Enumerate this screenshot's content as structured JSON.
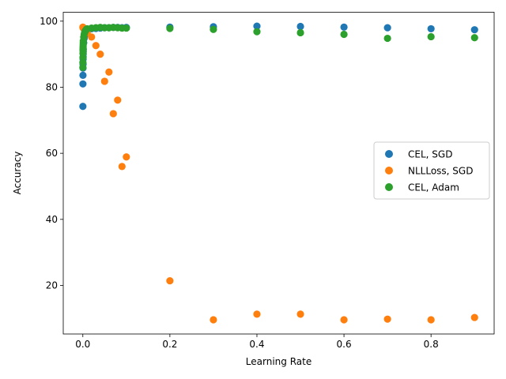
{
  "chart_data": {
    "type": "scatter",
    "title": "",
    "xlabel": "Learning Rate",
    "ylabel": "Accuracy",
    "xlim": [
      -0.045,
      0.945
    ],
    "ylim": [
      5.3,
      102.7
    ],
    "xticks": [
      0.0,
      0.2,
      0.4,
      0.6,
      0.8
    ],
    "xtick_labels": [
      "0.0",
      "0.2",
      "0.4",
      "0.6",
      "0.8"
    ],
    "yticks": [
      20,
      40,
      60,
      80,
      100
    ],
    "ytick_labels": [
      "20",
      "40",
      "60",
      "80",
      "100"
    ],
    "grid": false,
    "legend_position": "center-right",
    "series": [
      {
        "name": "CEL, SGD",
        "color": "#1f77b4",
        "points": [
          [
            0.0001,
            74.2
          ],
          [
            0.0002,
            81.0
          ],
          [
            0.0003,
            83.6
          ],
          [
            0.0004,
            85.8
          ],
          [
            0.0005,
            87.0
          ],
          [
            0.0006,
            88.5
          ],
          [
            0.0007,
            89.2
          ],
          [
            0.0008,
            90.1
          ],
          [
            0.0009,
            90.8
          ],
          [
            0.001,
            91.5
          ],
          [
            0.002,
            93.5
          ],
          [
            0.003,
            94.8
          ],
          [
            0.004,
            95.6
          ],
          [
            0.005,
            96.1
          ],
          [
            0.006,
            96.5
          ],
          [
            0.007,
            96.8
          ],
          [
            0.008,
            97.0
          ],
          [
            0.009,
            97.2
          ],
          [
            0.01,
            97.4
          ],
          [
            0.02,
            97.7
          ],
          [
            0.03,
            97.8
          ],
          [
            0.04,
            97.9
          ],
          [
            0.05,
            98.0
          ],
          [
            0.06,
            98.0
          ],
          [
            0.07,
            98.1
          ],
          [
            0.08,
            98.1
          ],
          [
            0.09,
            98.0
          ],
          [
            0.1,
            98.1
          ],
          [
            0.2,
            98.2
          ],
          [
            0.3,
            98.3
          ],
          [
            0.4,
            98.5
          ],
          [
            0.5,
            98.4
          ],
          [
            0.6,
            98.2
          ],
          [
            0.7,
            98.0
          ],
          [
            0.8,
            97.7
          ],
          [
            0.9,
            97.4
          ]
        ]
      },
      {
        "name": "NLLLoss, SGD",
        "color": "#ff7f0e",
        "points": [
          [
            0.0001,
            98.2
          ],
          [
            0.0005,
            98.0
          ],
          [
            0.001,
            97.9
          ],
          [
            0.005,
            97.5
          ],
          [
            0.01,
            96.5
          ],
          [
            0.02,
            95.2
          ],
          [
            0.03,
            92.6
          ],
          [
            0.04,
            90.0
          ],
          [
            0.05,
            81.8
          ],
          [
            0.06,
            84.6
          ],
          [
            0.07,
            72.0
          ],
          [
            0.08,
            76.1
          ],
          [
            0.09,
            56.0
          ],
          [
            0.1,
            58.9
          ],
          [
            0.2,
            21.4
          ],
          [
            0.3,
            9.6
          ],
          [
            0.4,
            11.3
          ],
          [
            0.5,
            11.3
          ],
          [
            0.6,
            9.6
          ],
          [
            0.7,
            9.8
          ],
          [
            0.8,
            9.6
          ],
          [
            0.9,
            10.3
          ]
        ]
      },
      {
        "name": "CEL, Adam",
        "color": "#2ca02c",
        "points": [
          [
            0.0001,
            86.0
          ],
          [
            0.0002,
            87.5
          ],
          [
            0.0003,
            89.0
          ],
          [
            0.0004,
            90.3
          ],
          [
            0.0005,
            91.2
          ],
          [
            0.0006,
            91.8
          ],
          [
            0.0007,
            92.3
          ],
          [
            0.0008,
            92.8
          ],
          [
            0.0009,
            93.4
          ],
          [
            0.001,
            94.0
          ],
          [
            0.002,
            95.2
          ],
          [
            0.003,
            96.0
          ],
          [
            0.004,
            96.5
          ],
          [
            0.005,
            96.9
          ],
          [
            0.006,
            97.1
          ],
          [
            0.007,
            97.3
          ],
          [
            0.008,
            97.5
          ],
          [
            0.009,
            97.6
          ],
          [
            0.01,
            97.7
          ],
          [
            0.02,
            97.9
          ],
          [
            0.03,
            98.0
          ],
          [
            0.04,
            98.1
          ],
          [
            0.05,
            98.0
          ],
          [
            0.06,
            98.0
          ],
          [
            0.07,
            98.1
          ],
          [
            0.08,
            98.0
          ],
          [
            0.09,
            97.9
          ],
          [
            0.1,
            97.9
          ],
          [
            0.2,
            97.8
          ],
          [
            0.3,
            97.5
          ],
          [
            0.4,
            96.8
          ],
          [
            0.5,
            96.5
          ],
          [
            0.6,
            96.0
          ],
          [
            0.7,
            94.8
          ],
          [
            0.8,
            95.3
          ],
          [
            0.9,
            95.0
          ]
        ]
      }
    ]
  }
}
